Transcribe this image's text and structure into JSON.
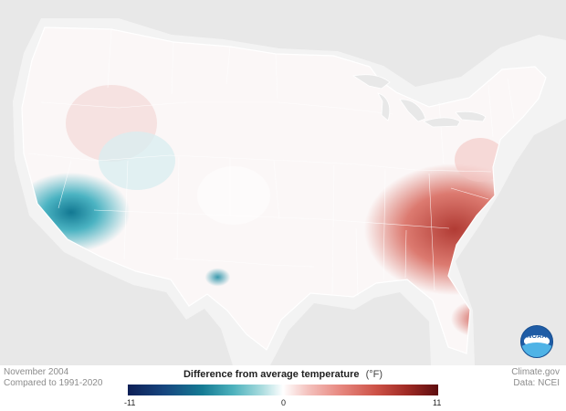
{
  "footer": {
    "left_line1": "November 2004",
    "left_line2": "Compared to 1991-2020",
    "right_line1": "Climate.gov",
    "right_line2": "Data: NCEI"
  },
  "legend": {
    "title": "Difference from average temperature",
    "unit": "(°F)",
    "min_label": "-11",
    "zero_label": "0",
    "max_label": "11",
    "colors": {
      "min": "#0e1f56",
      "cool": "#157b94",
      "neutral": "#ffffff",
      "warm": "#cd5247",
      "max": "#5d0d0f"
    }
  },
  "logo": {
    "text": "NOAA"
  }
}
